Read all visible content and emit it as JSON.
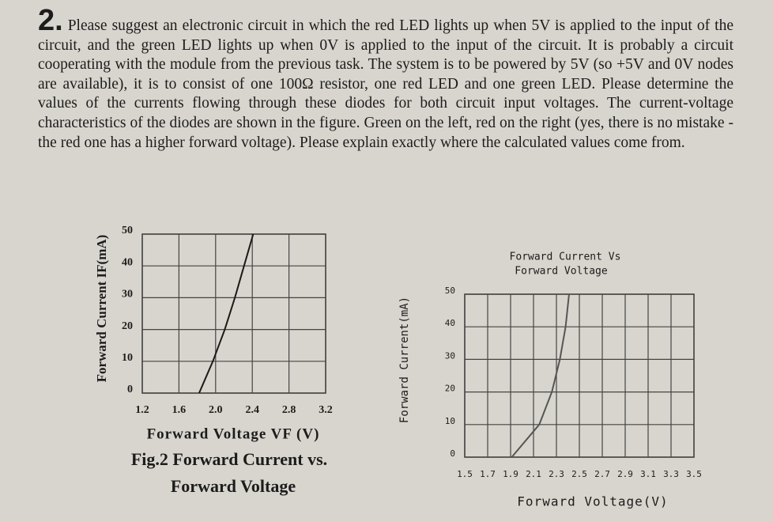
{
  "problem": {
    "number": "2.",
    "text": "Please suggest an electronic circuit in which the red LED lights up when 5V is applied to the input of the circuit, and the green LED lights up when 0V is applied to the input of the circuit. It is probably a circuit cooperating with the module from the previous task. The system is to be powered by 5V (so +5V and 0V nodes are available), it is to consist of one 100Ω resistor, one red LED and one green LED. Please determine the values of the currents flowing through these diodes for both circuit input voltages. The current-voltage characteristics of the diodes are shown in the figure. Green on the left, red on the right (yes, there is no mistake - the red one has a higher forward voltage). Please explain exactly where the calculated values come from."
  },
  "chart_data": [
    {
      "type": "line",
      "y_label": "Forward Current IF(mA)",
      "x_label": "Forward Voltage VF (V)",
      "caption": [
        "Fig.2 Forward Current vs.",
        "Forward Voltage"
      ],
      "x": [
        1.82,
        1.97,
        2.1,
        2.21,
        2.31,
        2.41
      ],
      "values": [
        0,
        10,
        20,
        30,
        40,
        50
      ],
      "color": "#1a1a1a",
      "xlim": [
        1.2,
        3.2
      ],
      "ylim": [
        0,
        50
      ],
      "xticks": [
        1.2,
        1.6,
        {
          "value": 2,
          "label": "2.0"
        },
        2.4,
        2.8,
        3.2
      ],
      "yticks": [
        0,
        10,
        20,
        30,
        40,
        50
      ],
      "grid": true
    },
    {
      "type": "line",
      "title": [
        "Forward Current Vs",
        "Forward Voltage"
      ],
      "y_label": "Forward Current(mA)",
      "x_label": "Forward Voltage(V)",
      "x": [
        1.91,
        2.15,
        2.26,
        2.33,
        2.38,
        2.41
      ],
      "values": [
        0,
        10,
        20,
        30,
        40,
        50
      ],
      "color": "#555555",
      "xlim": [
        1.5,
        3.5
      ],
      "ylim": [
        0,
        50
      ],
      "xticks": [
        1.5,
        1.7,
        1.9,
        2.1,
        2.3,
        2.5,
        2.7,
        2.9,
        3.1,
        3.3,
        3.5
      ],
      "yticks": [
        0,
        10,
        20,
        30,
        40,
        50
      ],
      "grid": true
    }
  ]
}
